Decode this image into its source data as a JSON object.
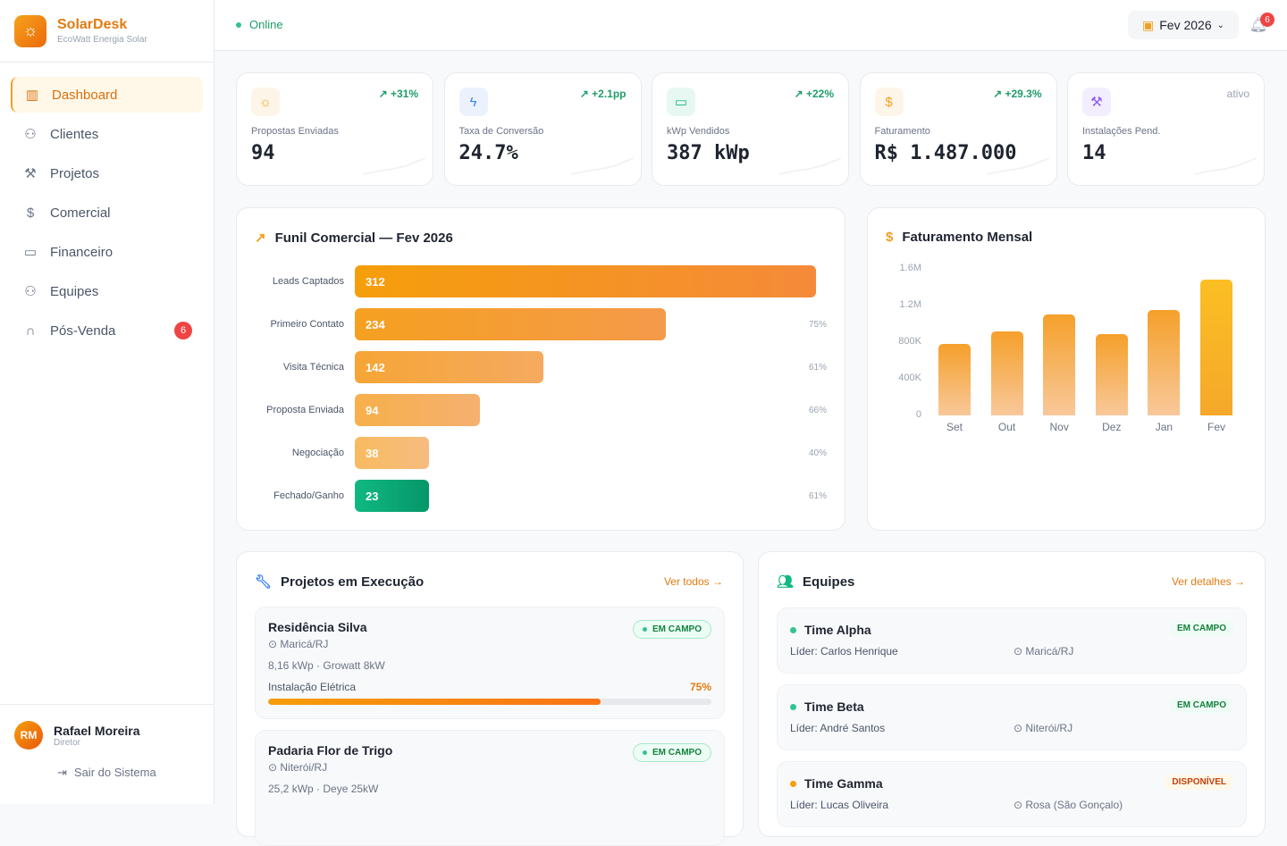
{
  "brand": {
    "name": "SolarDesk",
    "subtitle": "EcoWatt Energia Solar",
    "icon": "sun-icon"
  },
  "nav": [
    {
      "label": "Dashboard",
      "icon": "bar-chart-icon",
      "active": true
    },
    {
      "label": "Clientes",
      "icon": "user-plus-icon"
    },
    {
      "label": "Projetos",
      "icon": "wrench-icon"
    },
    {
      "label": "Comercial",
      "icon": "dollar-icon"
    },
    {
      "label": "Financeiro",
      "icon": "wallet-icon"
    },
    {
      "label": "Equipes",
      "icon": "users-icon"
    },
    {
      "label": "Pós-Venda",
      "icon": "headphones-icon",
      "badge": "6"
    }
  ],
  "user": {
    "initials": "RM",
    "name": "Rafael Moreira",
    "role": "Diretor",
    "logout": "Sair do Sistema"
  },
  "topbar": {
    "status": "Online",
    "month": "Fev 2026",
    "notifications": "6"
  },
  "kpis": [
    {
      "label": "Propostas Enviadas",
      "value": "94",
      "delta": "↗ +31%",
      "icon": "sun-icon",
      "color": "#f0a020"
    },
    {
      "label": "Taxa de Conversão",
      "value": "24.7%",
      "delta": "↗ +2.1pp",
      "icon": "bolt-icon",
      "color": "#3b82f6"
    },
    {
      "label": "kWp Vendidos",
      "value": "387 kWp",
      "delta": "↗ +22%",
      "icon": "battery-icon",
      "color": "#10b981"
    },
    {
      "label": "Faturamento",
      "value": "R$ 1.487.000",
      "delta": "↗ +29.3%",
      "icon": "dollar-icon",
      "color": "#f0a020"
    },
    {
      "label": "Instalações Pend.",
      "value": "14",
      "delta": "ativo",
      "icon": "wrench-icon",
      "color": "#8b5cf6"
    }
  ],
  "funnel": {
    "title": "Funil Comercial — Fev 2026",
    "stages": [
      {
        "label": "Leads Captados",
        "value": 312,
        "pct": ""
      },
      {
        "label": "Primeiro Contato",
        "value": 234,
        "pct": "75%"
      },
      {
        "label": "Visita Técnica",
        "value": 142,
        "pct": "61%"
      },
      {
        "label": "Proposta Enviada",
        "value": 94,
        "pct": "66%"
      },
      {
        "label": "Negociação",
        "value": 38,
        "pct": "40%"
      },
      {
        "label": "Fechado/Ganho",
        "value": 23,
        "pct": "61%"
      }
    ]
  },
  "chart_data": {
    "type": "bar",
    "title": "Faturamento Mensal",
    "categories": [
      "Set",
      "Out",
      "Nov",
      "Dez",
      "Jan",
      "Fev"
    ],
    "values": [
      785000,
      920000,
      1105000,
      890000,
      1155000,
      1487000
    ],
    "yticks": [
      "0",
      "400K",
      "800K",
      "1.2M",
      "1.6M"
    ],
    "ylim": [
      0,
      1600000
    ],
    "grid": false
  },
  "projects": {
    "title": "Projetos em Execução",
    "link": "Ver todos →",
    "items": [
      {
        "name": "Residência Silva",
        "location": "Maricá/RJ",
        "spec": "8,16 kWp · Growatt 8kW",
        "status": "EM CAMPO",
        "stage": "Instalação Elétrica",
        "progress": "75%",
        "progress_value": 75
      },
      {
        "name": "Padaria Flor de Trigo",
        "location": "Niterói/RJ",
        "spec": "25,2 kWp · Deye 25kW",
        "status": "EM CAMPO"
      }
    ]
  },
  "teams": {
    "title": "Equipes",
    "link": "Ver detalhes →",
    "items": [
      {
        "name": "Time Alpha",
        "leader": "Líder: Carlos Henrique",
        "location": "Maricá/RJ",
        "status": "EM CAMPO",
        "color": "#34c38f"
      },
      {
        "name": "Time Beta",
        "leader": "Líder: André Santos",
        "location": "Niterói/RJ",
        "status": "EM CAMPO",
        "color": "#34c38f"
      },
      {
        "name": "Time Gamma",
        "leader": "Líder: Lucas Oliveira",
        "location": "Rosa (São Gonçalo)",
        "status": "DISPONÍVEL",
        "color": "#f59e0b"
      }
    ]
  }
}
